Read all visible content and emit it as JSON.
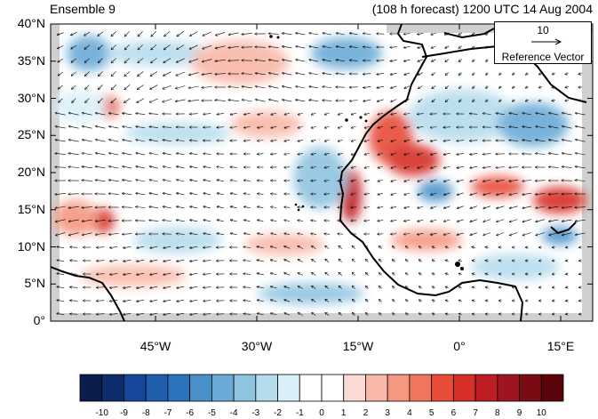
{
  "map": {
    "title_left": "Ensemble 9",
    "title_right": "(108 h forecast) 1200 UTC 14 Aug 2004",
    "lat_labels": [
      "40°N",
      "35°N",
      "30°N",
      "25°N",
      "20°N",
      "15°N",
      "10°N",
      "5°N",
      "0°"
    ],
    "lon_labels": [
      "45°W",
      "30°W",
      "15°W",
      "0°",
      "15°E"
    ],
    "reference_vector": {
      "magnitude": "10",
      "label": "Reference Vector"
    },
    "colorbar": {
      "labels": [
        "-10",
        "-9",
        "-8",
        "-7",
        "-6",
        "-5",
        "-4",
        "-3",
        "-2",
        "-1",
        "0",
        "1",
        "2",
        "3",
        "4",
        "5",
        "6",
        "7",
        "8",
        "9",
        "10"
      ],
      "colors": [
        "#0b1d4a",
        "#0e2d6c",
        "#16479a",
        "#1f5fae",
        "#2b73bd",
        "#4a90c9",
        "#6aaad6",
        "#8fc4e0",
        "#b5dced",
        "#daf0f8",
        "#ffffff",
        "#ffffff",
        "#fbdad5",
        "#f8b8a8",
        "#f59781",
        "#f0755d",
        "#e64c37",
        "#d62f27",
        "#bf1f24",
        "#9e1420",
        "#7a0a14",
        "#5a0308"
      ]
    },
    "colors": {
      "land_mask": "#d0d0d0",
      "coast": "#000000",
      "arrow": "#000000"
    }
  }
}
